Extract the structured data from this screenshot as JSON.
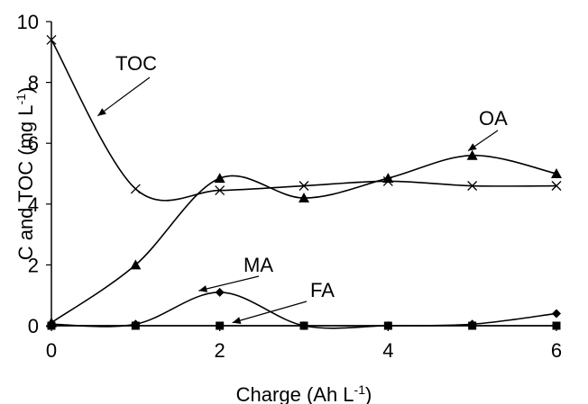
{
  "chart_data": {
    "type": "line",
    "title": "",
    "xlabel": "Charge (Ah L",
    "xlabel_sup": "-1",
    "xlabel_end": ")",
    "ylabel": "C and TOC (mg L",
    "ylabel_sup": "-1",
    "ylabel_end": ")",
    "xlim": [
      0,
      6
    ],
    "ylim": [
      0,
      10
    ],
    "xticks": [
      0,
      2,
      4,
      6
    ],
    "yticks": [
      0,
      2,
      4,
      6,
      8,
      10
    ],
    "grid": false,
    "smooth": true,
    "x": [
      0,
      1,
      2,
      3,
      4,
      5,
      6
    ],
    "series": [
      {
        "name": "TOC",
        "marker": "x",
        "values": [
          9.4,
          4.5,
          4.45,
          4.6,
          4.75,
          4.6,
          4.6
        ]
      },
      {
        "name": "OA",
        "marker": "triangle",
        "values": [
          0.1,
          2.0,
          4.85,
          4.2,
          4.85,
          5.6,
          5.0
        ]
      },
      {
        "name": "MA",
        "marker": "diamond",
        "values": [
          0.05,
          0.05,
          1.1,
          0.0,
          0.0,
          0.05,
          0.4
        ]
      },
      {
        "name": "FA",
        "marker": "square",
        "values": [
          0.0,
          0.0,
          0.0,
          0.0,
          0.0,
          0.0,
          0.0
        ]
      }
    ],
    "annotations": [
      {
        "label": "TOC",
        "series": "TOC",
        "target": [
          0.55,
          6.9
        ]
      },
      {
        "label": "OA",
        "series": "OA",
        "target": [
          4.95,
          5.75
        ]
      },
      {
        "label": "MA",
        "series": "MA",
        "target": [
          1.75,
          1.15
        ]
      },
      {
        "label": "FA",
        "series": "FA",
        "target": [
          2.15,
          0.1
        ]
      }
    ]
  }
}
